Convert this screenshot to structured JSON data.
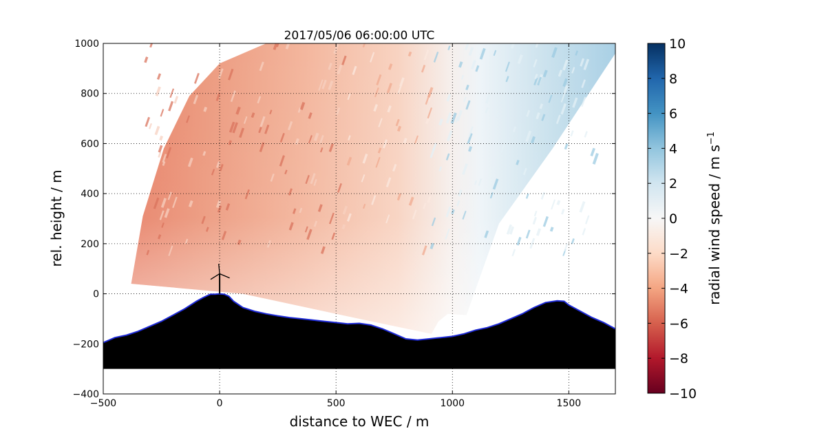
{
  "chart_data": {
    "type": "heatmap",
    "title": "2017/05/06 06:00:00 UTC",
    "xlabel": "distance to WEC / m",
    "ylabel": "rel. height / m",
    "xlim": [
      -500,
      1700
    ],
    "ylim": [
      -400,
      1000
    ],
    "xticks": [
      -500,
      0,
      500,
      1000,
      1500
    ],
    "yticks": [
      -400,
      -200,
      0,
      200,
      400,
      600,
      800,
      1000
    ],
    "grid": true,
    "colorbar": {
      "label": "radial wind speed / m s",
      "label_superscript": "−1",
      "range": [
        -10,
        10
      ],
      "ticks": [
        10,
        8,
        6,
        4,
        2,
        0,
        -2,
        -4,
        -6,
        -8,
        -10
      ],
      "tick_labels": [
        "10",
        "8",
        "6",
        "4",
        "2",
        "0",
        "−2",
        "−4",
        "−6",
        "−8",
        "−10"
      ],
      "colormap_stops": [
        [
          "#67001f",
          0.0
        ],
        [
          "#b2182b",
          0.1
        ],
        [
          "#d6604d",
          0.2
        ],
        [
          "#f4a582",
          0.3
        ],
        [
          "#fddbc7",
          0.4
        ],
        [
          "#f7f7f7",
          0.5
        ],
        [
          "#d1e5f0",
          0.6
        ],
        [
          "#92c5de",
          0.7
        ],
        [
          "#4393c3",
          0.8
        ],
        [
          "#2166ac",
          0.9
        ],
        [
          "#053061",
          1.0
        ]
      ]
    },
    "scan_sector": {
      "description_values_m_s": {
        "left_upper": -5,
        "left_lower": -3,
        "center": 0,
        "right": 2.5
      },
      "outline": [
        [
          -380,
          40
        ],
        [
          -330,
          310
        ],
        [
          -240,
          580
        ],
        [
          -130,
          790
        ],
        [
          0,
          920
        ],
        [
          200,
          1000
        ],
        [
          1700,
          1000
        ],
        [
          1700,
          960
        ],
        [
          1430,
          580
        ],
        [
          1200,
          280
        ],
        [
          1060,
          -85
        ],
        [
          980,
          -80
        ],
        [
          940,
          -110
        ],
        [
          910,
          -160
        ],
        [
          600,
          -100
        ],
        [
          300,
          -40
        ],
        [
          100,
          0
        ],
        [
          -380,
          40
        ]
      ]
    },
    "terrain": {
      "x": [
        -500,
        -450,
        -400,
        -350,
        -300,
        -250,
        -200,
        -150,
        -100,
        -70,
        -40,
        -20,
        0,
        20,
        40,
        60,
        100,
        150,
        200,
        250,
        300,
        350,
        400,
        450,
        500,
        550,
        600,
        650,
        700,
        750,
        800,
        850,
        900,
        950,
        1000,
        1050,
        1100,
        1150,
        1200,
        1250,
        1300,
        1350,
        1400,
        1450,
        1480,
        1500,
        1550,
        1600,
        1650,
        1700
      ],
      "y": [
        -195,
        -175,
        -165,
        -150,
        -130,
        -110,
        -85,
        -60,
        -30,
        -15,
        -2,
        -2,
        0,
        -2,
        -10,
        -30,
        -55,
        -70,
        -80,
        -88,
        -95,
        -100,
        -105,
        -110,
        -115,
        -120,
        -118,
        -125,
        -140,
        -160,
        -180,
        -185,
        -180,
        -175,
        -170,
        -160,
        -145,
        -135,
        -120,
        -100,
        -80,
        -55,
        -35,
        -28,
        -30,
        -45,
        -70,
        -95,
        -115,
        -140
      ],
      "baseline": -300
    },
    "wind_turbine": {
      "x": 0,
      "hub_height": 80
    }
  }
}
